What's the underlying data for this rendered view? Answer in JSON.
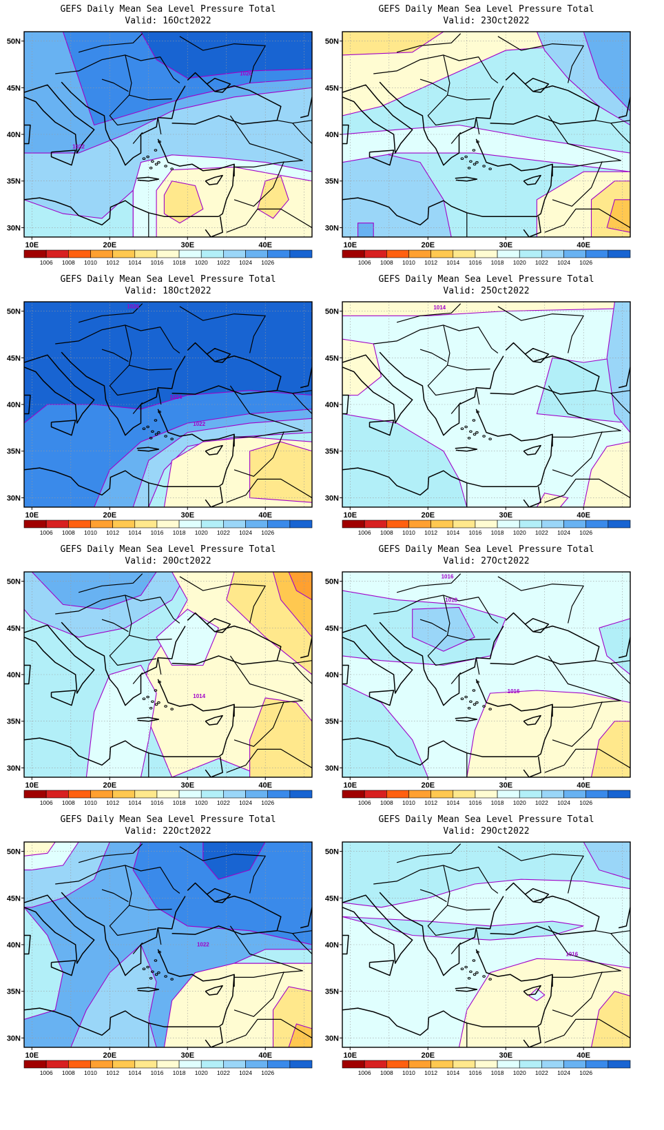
{
  "panels": [
    {
      "title": "GEFS Daily Mean Sea Level Pressure Total",
      "valid": "Valid: 16Oct2022",
      "scheme": "high_ne",
      "contour_labels": [
        {
          "text": "1026",
          "lon": 37.5,
          "lat": 46.3
        },
        {
          "text": "1022",
          "lon": 16,
          "lat": 38.5
        }
      ]
    },
    {
      "title": "GEFS Daily Mean Sea Level Pressure Total",
      "valid": "Valid: 23Oct2022",
      "scheme": "weak_high_w",
      "contour_labels": []
    },
    {
      "title": "GEFS Daily Mean Sea Level Pressure Total",
      "valid": "Valid: 18Oct2022",
      "scheme": "strong_high",
      "contour_labels": [
        {
          "text": "1026",
          "lon": 23,
          "lat": 50.3
        },
        {
          "text": "1024",
          "lon": 28.5,
          "lat": 40.6
        },
        {
          "text": "1022",
          "lon": 31.5,
          "lat": 37.7
        }
      ]
    },
    {
      "title": "GEFS Daily Mean Sea Level Pressure Total",
      "valid": "Valid: 25Oct2022",
      "scheme": "flat_1018",
      "contour_labels": [
        {
          "text": "1014",
          "lon": 21.5,
          "lat": 50.2
        }
      ]
    },
    {
      "title": "GEFS Daily Mean Sea Level Pressure Total",
      "valid": "Valid: 20Oct2022",
      "scheme": "low_ne",
      "contour_labels": [
        {
          "text": "1014",
          "lon": 31.5,
          "lat": 37.5
        }
      ]
    },
    {
      "title": "GEFS Daily Mean Sea Level Pressure Total",
      "valid": "Valid: 27Oct2022",
      "scheme": "flat_1016",
      "contour_labels": [
        {
          "text": "1016",
          "lon": 22.5,
          "lat": 50.3
        },
        {
          "text": "1018",
          "lon": 23,
          "lat": 47.8
        },
        {
          "text": "1016",
          "lon": 31,
          "lat": 38
        }
      ]
    },
    {
      "title": "GEFS Daily Mean Sea Level Pressure Total",
      "valid": "Valid: 22Oct2022",
      "scheme": "high_center",
      "contour_labels": [
        {
          "text": "1022",
          "lon": 32,
          "lat": 39.8
        }
      ]
    },
    {
      "title": "GEFS Daily Mean Sea Level Pressure Total",
      "valid": "Valid: 29Oct2022",
      "scheme": "flat_1018b",
      "contour_labels": [
        {
          "text": "1016",
          "lon": 38.5,
          "lat": 38.8
        }
      ]
    }
  ],
  "axes": {
    "lon_ticks": [
      "10E",
      "20E",
      "30E",
      "40E"
    ],
    "lat_ticks": [
      "50N",
      "45N",
      "40N",
      "35N",
      "30N"
    ],
    "lon_range": [
      9,
      46
    ],
    "lat_range": [
      29,
      51
    ]
  },
  "colorbar": {
    "labels": [
      "1006",
      "1008",
      "1010",
      "1012",
      "1014",
      "1016",
      "1018",
      "1020",
      "1022",
      "1024",
      "1026"
    ],
    "colors": [
      "#a00000",
      "#d82020",
      "#ff6010",
      "#ffa030",
      "#ffc850",
      "#ffe88c",
      "#fffcd2",
      "#e0fffe",
      "#b2eff8",
      "#9ad6f8",
      "#68b2f2",
      "#3a8aea",
      "#1864d2"
    ]
  },
  "contour_color": "#a000c8"
}
